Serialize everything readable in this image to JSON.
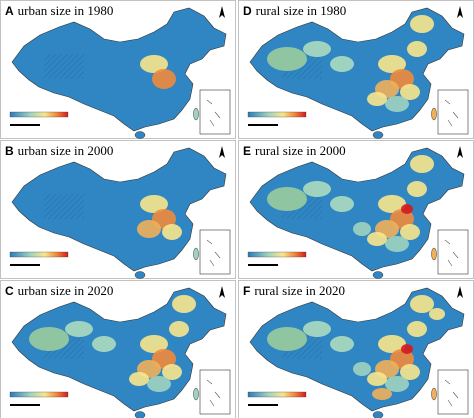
{
  "panels": [
    {
      "letter": "A",
      "title": "urban size in 1980"
    },
    {
      "letter": "D",
      "title": "rural size in 1980"
    },
    {
      "letter": "B",
      "title": "urban size in 2000"
    },
    {
      "letter": "E",
      "title": "rural size in 2000"
    },
    {
      "letter": "C",
      "title": "urban size in 2020"
    },
    {
      "letter": "F",
      "title": "rural size in 2020"
    }
  ]
}
